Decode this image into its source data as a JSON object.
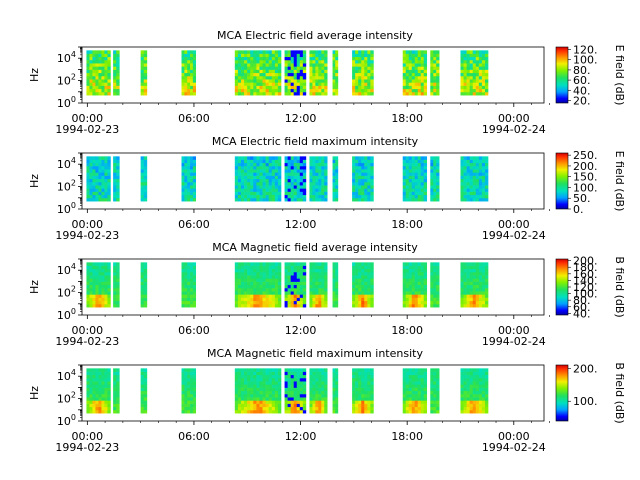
{
  "chart_data": [
    {
      "type": "heatmap",
      "title": "MCA  Electric field average intensity",
      "ylabel": "Hz",
      "yscale": "log",
      "ylim": [
        1,
        100000
      ],
      "y_ticks": [
        {
          "base": "10",
          "exp": "0"
        },
        {
          "base": "10",
          "exp": "2"
        },
        {
          "base": "10",
          "exp": "4"
        }
      ],
      "x_ticks": [
        {
          "time": "00:00",
          "date": "1994-02-23"
        },
        {
          "time": "06:00",
          "date": ""
        },
        {
          "time": "12:00",
          "date": ""
        },
        {
          "time": "18:00",
          "date": ""
        },
        {
          "time": "00:00",
          "date": "1994-02-24"
        }
      ],
      "colorbar": {
        "label": "E field (dB)",
        "range": [
          15,
          125
        ],
        "ticks": [
          "20.",
          "40.",
          "60.",
          "80.",
          "100.",
          "120."
        ]
      },
      "data_intervals_hours": [
        [
          0.25,
          1.6
        ],
        [
          1.75,
          2.1
        ],
        [
          3.3,
          3.65
        ],
        [
          5.6,
          6.4
        ],
        [
          8.6,
          11.2
        ],
        [
          11.4,
          12.6
        ],
        [
          12.8,
          13.8
        ],
        [
          14.1,
          14.4
        ],
        [
          15.2,
          16.4
        ],
        [
          18.05,
          19.4
        ],
        [
          19.6,
          20.1
        ],
        [
          21.3,
          22.85
        ]
      ]
    },
    {
      "type": "heatmap",
      "title": "MCA  Electric field maximum intensity",
      "ylabel": "Hz",
      "yscale": "log",
      "ylim": [
        1,
        100000
      ],
      "y_ticks": [
        {
          "base": "10",
          "exp": "0"
        },
        {
          "base": "10",
          "exp": "2"
        },
        {
          "base": "10",
          "exp": "4"
        }
      ],
      "x_ticks": [
        {
          "time": "00:00",
          "date": "1994-02-23"
        },
        {
          "time": "06:00",
          "date": ""
        },
        {
          "time": "12:00",
          "date": ""
        },
        {
          "time": "18:00",
          "date": ""
        },
        {
          "time": "00:00",
          "date": "1994-02-24"
        }
      ],
      "colorbar": {
        "label": "E field (dB)",
        "range": [
          0,
          260
        ],
        "ticks": [
          "0.",
          "50.",
          "100.",
          "150.",
          "200.",
          "250."
        ]
      },
      "data_intervals_hours": [
        [
          0.25,
          1.6
        ],
        [
          1.75,
          2.1
        ],
        [
          3.3,
          3.65
        ],
        [
          5.6,
          6.4
        ],
        [
          8.6,
          11.2
        ],
        [
          11.4,
          12.6
        ],
        [
          12.8,
          13.8
        ],
        [
          14.1,
          14.4
        ],
        [
          15.2,
          16.4
        ],
        [
          18.05,
          19.4
        ],
        [
          19.6,
          20.1
        ],
        [
          21.3,
          22.85
        ]
      ]
    },
    {
      "type": "heatmap",
      "title": "MCA  Magnetic field average intensity",
      "ylabel": "Hz",
      "yscale": "log",
      "ylim": [
        1,
        100000
      ],
      "y_ticks": [
        {
          "base": "10",
          "exp": "0"
        },
        {
          "base": "10",
          "exp": "2"
        },
        {
          "base": "10",
          "exp": "4"
        }
      ],
      "x_ticks": [
        {
          "time": "00:00",
          "date": "1994-02-23"
        },
        {
          "time": "06:00",
          "date": ""
        },
        {
          "time": "12:00",
          "date": ""
        },
        {
          "time": "18:00",
          "date": ""
        },
        {
          "time": "00:00",
          "date": "1994-02-24"
        }
      ],
      "colorbar": {
        "label": "B field (dB)",
        "range": [
          35,
          205
        ],
        "ticks": [
          "40.",
          "60.",
          "80.",
          "100.",
          "120.",
          "140.",
          "160.",
          "180.",
          "200."
        ]
      },
      "data_intervals_hours": [
        [
          0.25,
          1.6
        ],
        [
          1.75,
          2.1
        ],
        [
          3.3,
          3.65
        ],
        [
          5.6,
          6.4
        ],
        [
          8.6,
          11.2
        ],
        [
          11.4,
          12.6
        ],
        [
          12.8,
          13.8
        ],
        [
          14.1,
          14.4
        ],
        [
          15.2,
          16.4
        ],
        [
          18.05,
          19.4
        ],
        [
          19.6,
          20.1
        ],
        [
          21.3,
          22.85
        ]
      ]
    },
    {
      "type": "heatmap",
      "title": "MCA  Magnetic field maximum intensity",
      "ylabel": "Hz",
      "yscale": "log",
      "ylim": [
        1,
        100000
      ],
      "y_ticks": [
        {
          "base": "10",
          "exp": "0"
        },
        {
          "base": "10",
          "exp": "2"
        },
        {
          "base": "10",
          "exp": "4"
        }
      ],
      "x_ticks": [
        {
          "time": "00:00",
          "date": "1994-02-23"
        },
        {
          "time": "06:00",
          "date": ""
        },
        {
          "time": "12:00",
          "date": ""
        },
        {
          "time": "18:00",
          "date": ""
        },
        {
          "time": "00:00",
          "date": "1994-02-24"
        }
      ],
      "colorbar": {
        "label": "B field (dB)",
        "range": [
          40,
          210
        ],
        "ticks": [
          "100.",
          "200."
        ]
      },
      "data_intervals_hours": [
        [
          0.25,
          1.6
        ],
        [
          1.75,
          2.1
        ],
        [
          3.3,
          3.65
        ],
        [
          5.6,
          6.4
        ],
        [
          8.6,
          11.2
        ],
        [
          11.4,
          12.6
        ],
        [
          12.8,
          13.8
        ],
        [
          14.1,
          14.4
        ],
        [
          15.2,
          16.4
        ],
        [
          18.05,
          19.4
        ],
        [
          19.6,
          20.1
        ],
        [
          21.3,
          22.85
        ]
      ]
    }
  ]
}
